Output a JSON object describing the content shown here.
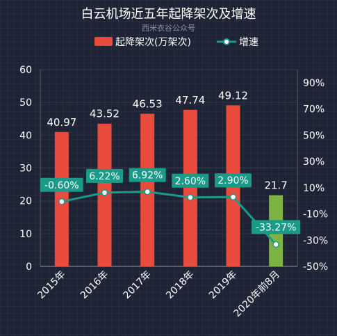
{
  "chart_data": {
    "type": "bar+line",
    "title": "白云机场近五年起降架次及增速",
    "subtitle": "西米衣谷公众号",
    "categories": [
      "2015年",
      "2016年",
      "2017年",
      "2018年",
      "2019年",
      "2020年前8月"
    ],
    "series": [
      {
        "name": "起降架次(万架次)",
        "type": "bar",
        "axis": "left",
        "values": [
          40.97,
          43.52,
          46.53,
          47.74,
          49.12,
          21.7
        ],
        "labels": [
          "40.97",
          "43.52",
          "46.53",
          "47.74",
          "49.12",
          "21.7"
        ],
        "colors": [
          "#e94b3c",
          "#e94b3c",
          "#e94b3c",
          "#e94b3c",
          "#e94b3c",
          "#7cb342"
        ]
      },
      {
        "name": "增速",
        "type": "line",
        "axis": "right",
        "values": [
          -0.6,
          6.22,
          6.92,
          2.6,
          2.9,
          -33.27
        ],
        "labels": [
          "-0.60%",
          "6.22%",
          "6.92%",
          "2.60%",
          "2.90%",
          "-33.27%"
        ],
        "color": "#1a9b8a"
      }
    ],
    "y_left": {
      "min": 0,
      "max": 60,
      "ticks": [
        "0",
        "10",
        "20",
        "30",
        "40",
        "50",
        "60"
      ]
    },
    "y_right": {
      "min": -50,
      "max": 100,
      "ticks": [
        "-50%",
        "-30%",
        "-10%",
        "10%",
        "30%",
        "50%",
        "70%",
        "90%"
      ]
    },
    "legend": "top-center",
    "grid": true
  }
}
